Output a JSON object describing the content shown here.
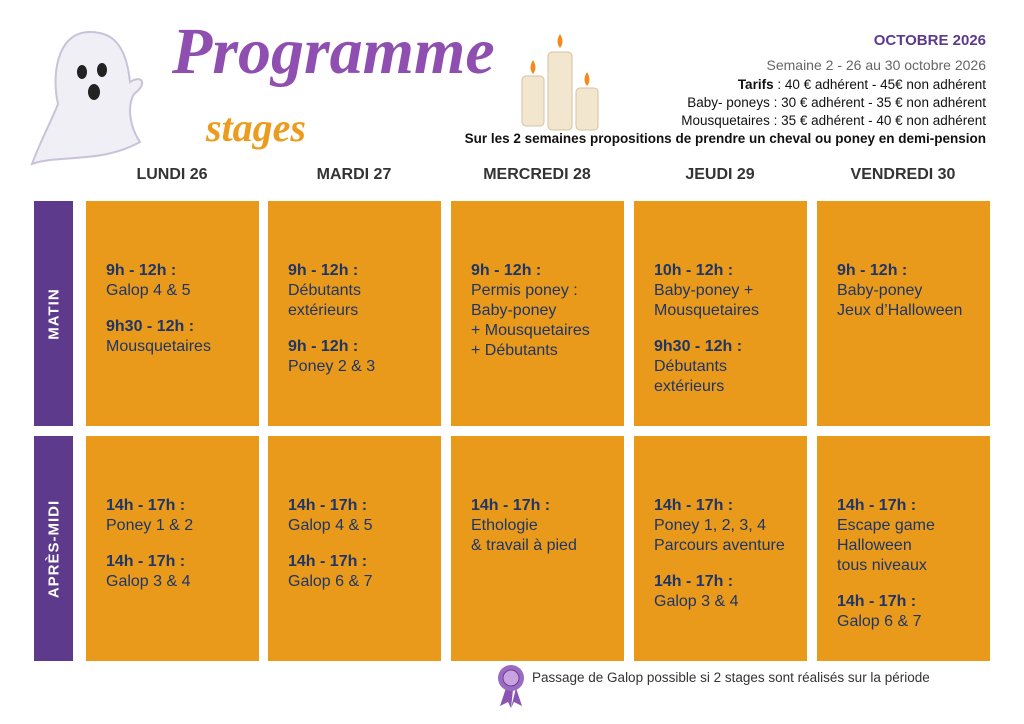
{
  "header": {
    "title": "Programme",
    "subtitle": "stages",
    "month": "OCTOBRE 2026",
    "week": "Semaine 2 - 26 au 30 octobre 2026",
    "tarifs": [
      {
        "label": "Tarifs",
        "text": " : 40 € adhérent - 45€ non adhérent"
      },
      {
        "label": "Baby- poneys",
        "text": " : 30 € adhérent - 35 € non adhérent"
      },
      {
        "label": "Mousquetaires",
        "text": " : 35 € adhérent - 40 € non adhérent"
      }
    ],
    "note": "Sur les 2 semaines propositions de prendre un cheval ou poney en demi-pension"
  },
  "days": [
    "LUNDI 26",
    "MARDI 27",
    "MERCREDI 28",
    "JEUDI 29",
    "VENDREDI 30"
  ],
  "periods": [
    "MATIN",
    "APRÈS-MIDI"
  ],
  "schedule": [
    [
      [
        {
          "time": "9h - 12h :",
          "lines": [
            "Galop 4 & 5"
          ]
        },
        {
          "time": "9h30 - 12h :",
          "lines": [
            "Mousquetaires"
          ]
        }
      ],
      [
        {
          "time": "9h - 12h :",
          "lines": [
            "Débutants",
            "extérieurs"
          ]
        },
        {
          "time": "9h - 12h :",
          "lines": [
            "Poney 2 & 3"
          ]
        }
      ],
      [
        {
          "time": "9h - 12h :",
          "lines": [
            "Permis poney :",
            "Baby-poney",
            "+ Mousquetaires",
            "+ Débutants"
          ]
        }
      ],
      [
        {
          "time": "10h - 12h :",
          "lines": [
            "Baby-poney +",
            "Mousquetaires"
          ]
        },
        {
          "time": "9h30 - 12h :",
          "lines": [
            "Débutants",
            "extérieurs"
          ]
        }
      ],
      [
        {
          "time": "9h - 12h :",
          "lines": [
            "Baby-poney",
            "Jeux d’Halloween"
          ]
        }
      ]
    ],
    [
      [
        {
          "time": "14h - 17h :",
          "lines": [
            "Poney 1 & 2"
          ]
        },
        {
          "time": "14h - 17h :",
          "lines": [
            "Galop 3 & 4"
          ]
        }
      ],
      [
        {
          "time": "14h - 17h :",
          "lines": [
            "Galop 4 & 5"
          ]
        },
        {
          "time": "14h - 17h :",
          "lines": [
            "Galop 6 & 7"
          ]
        }
      ],
      [
        {
          "time": "14h - 17h :",
          "lines": [
            "Ethologie",
            "& travail à pied"
          ]
        }
      ],
      [
        {
          "time": "14h - 17h :",
          "lines": [
            "Poney 1, 2, 3, 4",
            "Parcours aventure"
          ]
        },
        {
          "time": "14h - 17h :",
          "lines": [
            "Galop 3 & 4"
          ]
        }
      ],
      [
        {
          "time": "14h - 17h :",
          "lines": [
            "Escape game",
            "Halloween",
            "tous niveaux"
          ]
        },
        {
          "time": "14h - 17h :",
          "lines": [
            "Galop 6 & 7"
          ]
        }
      ]
    ]
  ],
  "footer": "Passage de Galop possible si 2 stages sont réalisés sur la période"
}
